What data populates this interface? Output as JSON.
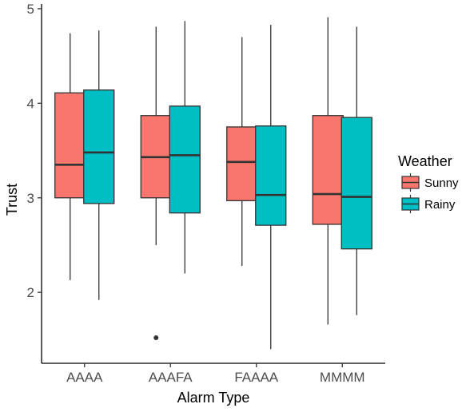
{
  "chart_data": {
    "type": "boxplot",
    "xlabel": "Alarm Type",
    "ylabel": "Trust",
    "ylim": [
      1.25,
      5.05
    ],
    "yticks": [
      2,
      3,
      4,
      5
    ],
    "ytick_labels": [
      "2",
      "3",
      "4",
      "5"
    ],
    "categories": [
      "AAAA",
      "AAAFA",
      "FAAAA",
      "MMMM"
    ],
    "grid": false,
    "legend": {
      "title": "Weather",
      "position": "right"
    },
    "series": [
      {
        "name": "Sunny",
        "color": "#F8766D",
        "boxes": [
          {
            "whisker_low": 2.13,
            "q1": 3.0,
            "median": 3.35,
            "q3": 4.11,
            "whisker_high": 4.74,
            "outliers": []
          },
          {
            "whisker_low": 2.5,
            "q1": 3.0,
            "median": 3.43,
            "q3": 3.87,
            "whisker_high": 4.81,
            "outliers": [
              1.52
            ]
          },
          {
            "whisker_low": 2.28,
            "q1": 2.97,
            "median": 3.38,
            "q3": 3.75,
            "whisker_high": 4.7,
            "outliers": []
          },
          {
            "whisker_low": 1.66,
            "q1": 2.72,
            "median": 3.04,
            "q3": 3.87,
            "whisker_high": 4.91,
            "outliers": []
          }
        ]
      },
      {
        "name": "Rainy",
        "color": "#00BFC4",
        "boxes": [
          {
            "whisker_low": 1.92,
            "q1": 2.94,
            "median": 3.48,
            "q3": 4.14,
            "whisker_high": 4.77,
            "outliers": []
          },
          {
            "whisker_low": 2.2,
            "q1": 2.84,
            "median": 3.45,
            "q3": 3.97,
            "whisker_high": 4.87,
            "outliers": []
          },
          {
            "whisker_low": 1.4,
            "q1": 2.71,
            "median": 3.03,
            "q3": 3.76,
            "whisker_high": 4.83,
            "outliers": []
          },
          {
            "whisker_low": 1.76,
            "q1": 2.46,
            "median": 3.01,
            "q3": 3.85,
            "whisker_high": 4.81,
            "outliers": []
          }
        ]
      }
    ]
  }
}
